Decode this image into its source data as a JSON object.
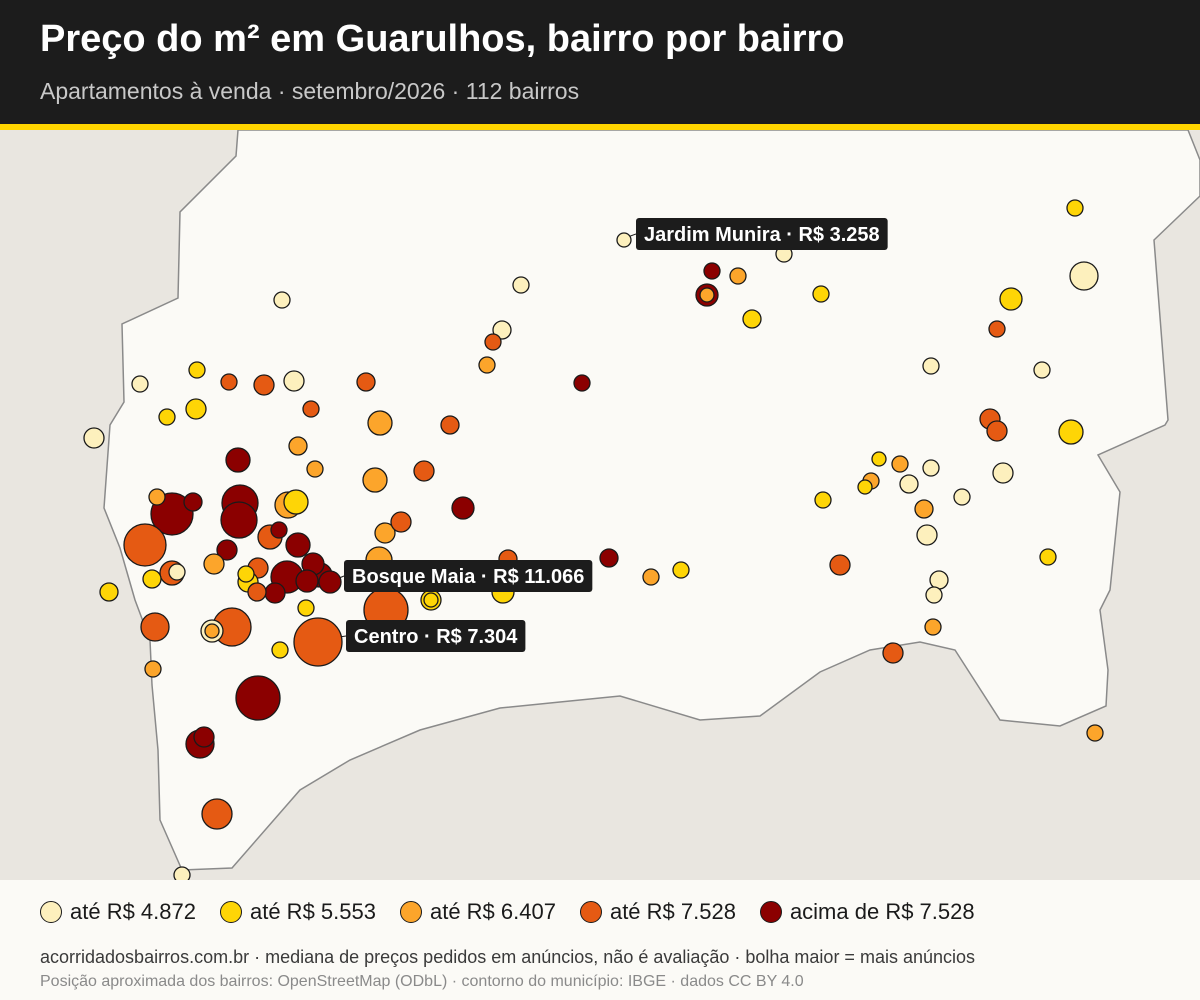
{
  "header": {
    "title": "Preço do m² em Guarulhos, bairro por bairro",
    "subtitle": "Apartamentos à venda · setembro/2026 · 112 bairros"
  },
  "colors": {
    "header_bg": "#1c1c1c",
    "accent": "#ffd500",
    "background": "#fbfaf6",
    "neighbor_area": "#e9e6e0",
    "boundary": "#8a8a8a",
    "label_bg": "#1c1c1c"
  },
  "legend": [
    {
      "label": "até R$ 4.872",
      "color": "#fdf0bd"
    },
    {
      "label": "até R$ 5.553",
      "color": "#fed506"
    },
    {
      "label": "até R$ 6.407",
      "color": "#fca52b"
    },
    {
      "label": "até R$ 7.528",
      "color": "#e55a13"
    },
    {
      "label": "acima de R$ 7.528",
      "color": "#8b0000"
    }
  ],
  "callouts": [
    {
      "label": "Jardim Munira · R$ 3.258"
    },
    {
      "label": "Bosque Maia · R$ 11.066"
    },
    {
      "label": "Centro · R$ 7.304"
    }
  ],
  "footer": {
    "line1": "acorridadosbairros.com.br · mediana de preços pedidos em anúncios, não é avaliação · bolha maior = mais anúncios",
    "line2": "Posição aproximada dos bairros: OpenStreetMap (ODbL) · contorno do município: IBGE · dados CC BY 4.0"
  }
}
